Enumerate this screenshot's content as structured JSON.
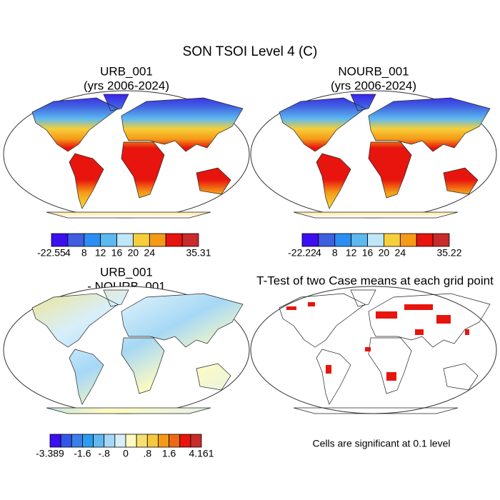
{
  "title": "SON TSOI Level 4 (C)",
  "panels": [
    {
      "title": [
        "URB_001",
        "(yrs 2006-2024)"
      ],
      "colorbar": {
        "colors": [
          "#3b0ff0",
          "#3f5fe0",
          "#2a8ff0",
          "#5cb8f0",
          "#bfe6f7",
          "#f6cf3a",
          "#f59a16",
          "#e8140e",
          "#c92a2a"
        ],
        "labels": [
          "-22.55",
          "4",
          "8",
          "12",
          "16",
          "20",
          "24",
          null,
          null,
          "35.31"
        ]
      }
    },
    {
      "title": [
        "NOURB_001",
        "(yrs 2006-2024)"
      ],
      "colorbar": {
        "colors": [
          "#3b0ff0",
          "#3f5fe0",
          "#2a8ff0",
          "#5cb8f0",
          "#bfe6f7",
          "#f6cf3a",
          "#f59a16",
          "#e8140e",
          "#c92a2a"
        ],
        "labels": [
          "-22.22",
          "4",
          "8",
          "12",
          "16",
          "20",
          "24",
          null,
          null,
          "35.22"
        ]
      }
    },
    {
      "title": [
        "URB_001",
        "- NOURB_001"
      ],
      "colorbar": {
        "colors": [
          "#3b0ff0",
          "#3257e8",
          "#3c7fe8",
          "#2c9cf0",
          "#60b8f0",
          "#a6d8f5",
          "#d8effa",
          "#fffbc0",
          "#f8e070",
          "#f5c842",
          "#f59a16",
          "#ee6a12",
          "#e8140e",
          "#c92a2a"
        ],
        "labels": [
          "-3.389",
          null,
          null,
          "-1.6",
          null,
          "-.8",
          null,
          "0",
          null,
          ".8",
          null,
          "1.6",
          null,
          null,
          "4.161"
        ]
      }
    },
    {
      "title": [
        "T-Test of two Case means at each grid point"
      ]
    }
  ],
  "note": "Cells are significant at 0.1 level"
}
